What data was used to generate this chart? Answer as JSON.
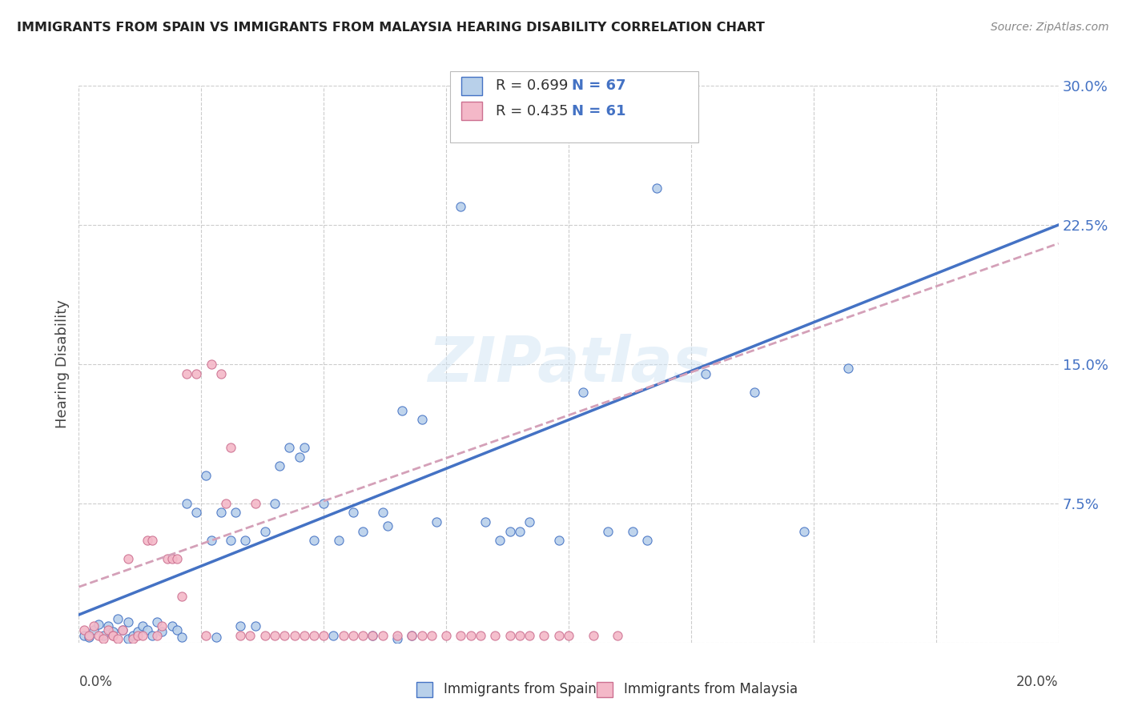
{
  "title": "IMMIGRANTS FROM SPAIN VS IMMIGRANTS FROM MALAYSIA HEARING DISABILITY CORRELATION CHART",
  "source": "Source: ZipAtlas.com",
  "ylabel": "Hearing Disability",
  "xlim": [
    0.0,
    0.2
  ],
  "ylim": [
    0.0,
    0.3
  ],
  "yticks": [
    0.0,
    0.075,
    0.15,
    0.225,
    0.3
  ],
  "ytick_labels": [
    "",
    "7.5%",
    "15.0%",
    "22.5%",
    "30.0%"
  ],
  "background_color": "#ffffff",
  "grid_color": "#cccccc",
  "watermark": "ZIPatlas",
  "legend_r1": "R = 0.699",
  "legend_n1": "N = 67",
  "legend_r2": "R = 0.435",
  "legend_n2": "N = 61",
  "spain_color": "#b8d0ea",
  "malaysia_color": "#f4b8c8",
  "spain_line_color": "#4472c4",
  "malaysia_line_color": "#d4a0b8",
  "tick_color": "#4472c4",
  "title_color": "#222222",
  "source_color": "#888888",
  "legend_text_r_color": "#333333",
  "legend_text_n_color": "#4472c4",
  "spain_scatter": [
    [
      0.001,
      0.004
    ],
    [
      0.002,
      0.003
    ],
    [
      0.003,
      0.007
    ],
    [
      0.004,
      0.01
    ],
    [
      0.005,
      0.004
    ],
    [
      0.006,
      0.009
    ],
    [
      0.007,
      0.006
    ],
    [
      0.008,
      0.013
    ],
    [
      0.009,
      0.007
    ],
    [
      0.01,
      0.011
    ],
    [
      0.01,
      0.002
    ],
    [
      0.011,
      0.004
    ],
    [
      0.012,
      0.006
    ],
    [
      0.013,
      0.009
    ],
    [
      0.014,
      0.007
    ],
    [
      0.015,
      0.004
    ],
    [
      0.016,
      0.011
    ],
    [
      0.017,
      0.006
    ],
    [
      0.019,
      0.009
    ],
    [
      0.02,
      0.007
    ],
    [
      0.021,
      0.003
    ],
    [
      0.022,
      0.075
    ],
    [
      0.024,
      0.07
    ],
    [
      0.026,
      0.09
    ],
    [
      0.027,
      0.055
    ],
    [
      0.028,
      0.003
    ],
    [
      0.029,
      0.07
    ],
    [
      0.031,
      0.055
    ],
    [
      0.032,
      0.07
    ],
    [
      0.033,
      0.009
    ],
    [
      0.034,
      0.055
    ],
    [
      0.036,
      0.009
    ],
    [
      0.038,
      0.06
    ],
    [
      0.04,
      0.075
    ],
    [
      0.041,
      0.095
    ],
    [
      0.043,
      0.105
    ],
    [
      0.045,
      0.1
    ],
    [
      0.046,
      0.105
    ],
    [
      0.048,
      0.055
    ],
    [
      0.05,
      0.075
    ],
    [
      0.052,
      0.004
    ],
    [
      0.053,
      0.055
    ],
    [
      0.056,
      0.07
    ],
    [
      0.058,
      0.06
    ],
    [
      0.06,
      0.004
    ],
    [
      0.062,
      0.07
    ],
    [
      0.063,
      0.063
    ],
    [
      0.065,
      0.002
    ],
    [
      0.066,
      0.125
    ],
    [
      0.068,
      0.004
    ],
    [
      0.07,
      0.12
    ],
    [
      0.073,
      0.065
    ],
    [
      0.078,
      0.235
    ],
    [
      0.083,
      0.065
    ],
    [
      0.086,
      0.055
    ],
    [
      0.088,
      0.06
    ],
    [
      0.09,
      0.06
    ],
    [
      0.092,
      0.065
    ],
    [
      0.098,
      0.055
    ],
    [
      0.103,
      0.135
    ],
    [
      0.108,
      0.06
    ],
    [
      0.113,
      0.06
    ],
    [
      0.116,
      0.055
    ],
    [
      0.118,
      0.245
    ],
    [
      0.128,
      0.145
    ],
    [
      0.138,
      0.135
    ],
    [
      0.148,
      0.06
    ],
    [
      0.157,
      0.148
    ]
  ],
  "malaysia_scatter": [
    [
      0.001,
      0.007
    ],
    [
      0.002,
      0.004
    ],
    [
      0.003,
      0.009
    ],
    [
      0.004,
      0.004
    ],
    [
      0.005,
      0.002
    ],
    [
      0.006,
      0.007
    ],
    [
      0.007,
      0.004
    ],
    [
      0.007,
      0.004
    ],
    [
      0.008,
      0.002
    ],
    [
      0.009,
      0.007
    ],
    [
      0.01,
      0.045
    ],
    [
      0.011,
      0.002
    ],
    [
      0.012,
      0.004
    ],
    [
      0.013,
      0.004
    ],
    [
      0.014,
      0.055
    ],
    [
      0.015,
      0.055
    ],
    [
      0.016,
      0.004
    ],
    [
      0.017,
      0.009
    ],
    [
      0.018,
      0.045
    ],
    [
      0.019,
      0.045
    ],
    [
      0.02,
      0.045
    ],
    [
      0.021,
      0.025
    ],
    [
      0.022,
      0.145
    ],
    [
      0.024,
      0.145
    ],
    [
      0.026,
      0.004
    ],
    [
      0.027,
      0.15
    ],
    [
      0.029,
      0.145
    ],
    [
      0.03,
      0.075
    ],
    [
      0.031,
      0.105
    ],
    [
      0.033,
      0.004
    ],
    [
      0.035,
      0.004
    ],
    [
      0.036,
      0.075
    ],
    [
      0.038,
      0.004
    ],
    [
      0.04,
      0.004
    ],
    [
      0.042,
      0.004
    ],
    [
      0.044,
      0.004
    ],
    [
      0.046,
      0.004
    ],
    [
      0.048,
      0.004
    ],
    [
      0.05,
      0.004
    ],
    [
      0.054,
      0.004
    ],
    [
      0.056,
      0.004
    ],
    [
      0.058,
      0.004
    ],
    [
      0.06,
      0.004
    ],
    [
      0.062,
      0.004
    ],
    [
      0.065,
      0.004
    ],
    [
      0.068,
      0.004
    ],
    [
      0.07,
      0.004
    ],
    [
      0.072,
      0.004
    ],
    [
      0.075,
      0.004
    ],
    [
      0.078,
      0.004
    ],
    [
      0.08,
      0.004
    ],
    [
      0.082,
      0.004
    ],
    [
      0.085,
      0.004
    ],
    [
      0.088,
      0.004
    ],
    [
      0.09,
      0.004
    ],
    [
      0.092,
      0.004
    ],
    [
      0.095,
      0.004
    ],
    [
      0.098,
      0.004
    ],
    [
      0.1,
      0.004
    ],
    [
      0.105,
      0.004
    ],
    [
      0.11,
      0.004
    ]
  ],
  "spain_line": {
    "x0": 0.0,
    "y0": 0.015,
    "x1": 0.2,
    "y1": 0.225
  },
  "malaysia_line": {
    "x0": 0.0,
    "y0": 0.03,
    "x1": 0.2,
    "y1": 0.215
  }
}
